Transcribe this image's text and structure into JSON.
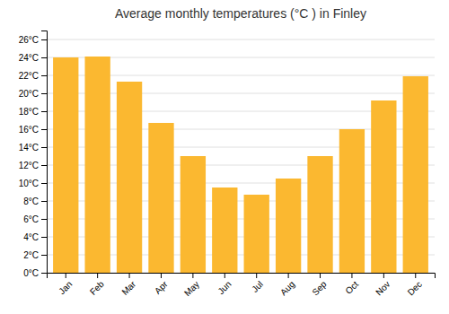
{
  "chart_data": {
    "type": "bar",
    "title": "Average monthly temperatures (°C ) in Finley",
    "categories": [
      "Jan",
      "Feb",
      "Mar",
      "Apr",
      "May",
      "Jun",
      "Jul",
      "Aug",
      "Sep",
      "Oct",
      "Nov",
      "Dec"
    ],
    "values": [
      24.0,
      24.1,
      21.3,
      16.7,
      13.0,
      9.5,
      8.7,
      10.5,
      13.0,
      16.0,
      19.2,
      21.9
    ],
    "color": "#FBB830",
    "ylim": [
      0,
      27
    ],
    "yticks": [
      {
        "value": 0,
        "label": "0°C"
      },
      {
        "value": 2,
        "label": "2°C"
      },
      {
        "value": 4,
        "label": "4°C"
      },
      {
        "value": 6,
        "label": "6°C"
      },
      {
        "value": 8,
        "label": "8°C"
      },
      {
        "value": 10,
        "label": "10°C"
      },
      {
        "value": 12,
        "label": "12°C"
      },
      {
        "value": 14,
        "label": "14°C"
      },
      {
        "value": 16,
        "label": "16°C"
      },
      {
        "value": 18,
        "label": "18°C"
      },
      {
        "value": 20,
        "label": "20°C"
      },
      {
        "value": 22,
        "label": "22°C"
      },
      {
        "value": 24,
        "label": "24°C"
      },
      {
        "value": 26,
        "label": "26°C"
      }
    ],
    "grid": true
  }
}
